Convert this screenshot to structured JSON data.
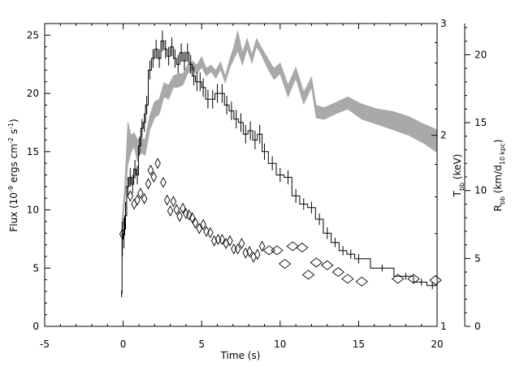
{
  "chart_data": {
    "type": "line",
    "xlabel": "Time (s)",
    "xlim": [
      -5,
      20
    ],
    "x_ticks": [
      "-5",
      "0",
      "5",
      "10",
      "15",
      "20"
    ],
    "left_axis": {
      "label_main": "Flux (10",
      "label_exp1": "-9",
      "label_mid": " ergs cm",
      "label_exp2": "-2",
      "label_s": " s",
      "label_exp3": "-1",
      "label_end": ")",
      "ylim": [
        0,
        26
      ],
      "ticks": [
        "0",
        "5",
        "10",
        "15",
        "20",
        "25"
      ]
    },
    "temp_axis": {
      "label_main": "T",
      "label_sub": "bb",
      "label_end": " (keV)",
      "scale": "log",
      "ylim": [
        1,
        3
      ],
      "ticks": [
        "1",
        "2",
        "3"
      ]
    },
    "radius_axis": {
      "label_main": "R",
      "label_sub1": "bb",
      "label_mid": " (km/d",
      "label_sub2": "10 kpc",
      "label_end": ")",
      "ylim": [
        0,
        22.3
      ],
      "ticks": [
        "0",
        "5",
        "10",
        "15",
        "20"
      ]
    },
    "series": [
      {
        "style": "histogram with error bars",
        "axis": "flux",
        "points": [
          [
            -0.1,
            2.8,
            0.3
          ],
          [
            -0.05,
            7.5,
            1.5
          ],
          [
            0.05,
            8.0,
            1.3
          ],
          [
            0.15,
            9.5,
            1.2
          ],
          [
            0.3,
            12.0,
            0.8
          ],
          [
            0.45,
            12.8,
            0.8
          ],
          [
            0.6,
            12.2,
            0.8
          ],
          [
            0.75,
            13.5,
            0.8
          ],
          [
            0.9,
            13.0,
            0.8
          ],
          [
            1.05,
            15.5,
            0.8
          ],
          [
            1.2,
            17.0,
            0.8
          ],
          [
            1.35,
            17.5,
            0.8
          ],
          [
            1.5,
            19.0,
            0.8
          ],
          [
            1.7,
            22.0,
            0.8
          ],
          [
            1.9,
            23.0,
            0.8
          ],
          [
            2.1,
            23.8,
            0.8
          ],
          [
            2.3,
            23.0,
            0.8
          ],
          [
            2.5,
            24.5,
            0.9
          ],
          [
            2.7,
            23.8,
            0.8
          ],
          [
            2.9,
            23.2,
            0.8
          ],
          [
            3.1,
            24.0,
            0.8
          ],
          [
            3.3,
            23.0,
            0.8
          ],
          [
            3.5,
            22.5,
            0.8
          ],
          [
            3.7,
            23.5,
            0.8
          ],
          [
            3.9,
            22.8,
            0.8
          ],
          [
            4.1,
            23.5,
            0.8
          ],
          [
            4.3,
            22.5,
            0.8
          ],
          [
            4.5,
            21.5,
            0.8
          ],
          [
            4.7,
            21.0,
            0.8
          ],
          [
            4.9,
            21.0,
            0.8
          ],
          [
            5.1,
            20.5,
            0.8
          ],
          [
            5.4,
            19.5,
            0.8
          ],
          [
            5.7,
            19.5,
            0.8
          ],
          [
            6.0,
            20.0,
            0.8
          ],
          [
            6.3,
            20.0,
            0.8
          ],
          [
            6.6,
            19.0,
            0.8
          ],
          [
            6.9,
            18.5,
            0.8
          ],
          [
            7.2,
            17.8,
            0.8
          ],
          [
            7.5,
            17.5,
            0.8
          ],
          [
            7.8,
            16.5,
            0.8
          ],
          [
            8.1,
            16.8,
            0.8
          ],
          [
            8.4,
            16.0,
            0.8
          ],
          [
            8.7,
            16.5,
            0.8
          ],
          [
            9.0,
            15.0,
            0.7
          ],
          [
            9.5,
            14.0,
            0.6
          ],
          [
            10.0,
            13.0,
            0.6
          ],
          [
            10.5,
            12.8,
            0.6
          ],
          [
            11.0,
            11.2,
            0.6
          ],
          [
            11.5,
            10.5,
            0.5
          ],
          [
            12.0,
            10.2,
            0.5
          ],
          [
            12.5,
            9.2,
            0.5
          ],
          [
            13.0,
            8.0,
            0.5
          ],
          [
            13.5,
            7.2,
            0.4
          ],
          [
            14.0,
            6.5,
            0.4
          ],
          [
            14.5,
            6.2,
            0.4
          ],
          [
            15.0,
            5.8,
            0.4
          ],
          [
            16.5,
            5.0,
            0.3
          ],
          [
            18.0,
            4.3,
            0.3
          ],
          [
            19.0,
            3.8,
            0.3
          ],
          [
            19.7,
            3.5,
            0.3
          ],
          [
            20.0,
            3.5,
            0.3
          ]
        ]
      },
      {
        "style": "shaded band",
        "axis": "temperature",
        "points": [
          [
            -0.1,
            1.38,
            1.45
          ],
          [
            0.1,
            1.57,
            1.66
          ],
          [
            0.3,
            1.8,
            2.1
          ],
          [
            0.5,
            1.88,
            2.0
          ],
          [
            0.7,
            1.92,
            2.02
          ],
          [
            0.9,
            1.82,
            1.97
          ],
          [
            1.1,
            1.88,
            1.98
          ],
          [
            1.4,
            1.86,
            1.97
          ],
          [
            1.7,
            2.04,
            2.15
          ],
          [
            2.0,
            2.13,
            2.26
          ],
          [
            2.3,
            2.16,
            2.28
          ],
          [
            2.6,
            2.3,
            2.42
          ],
          [
            2.9,
            2.28,
            2.4
          ],
          [
            3.2,
            2.38,
            2.48
          ],
          [
            3.5,
            2.38,
            2.5
          ],
          [
            3.8,
            2.4,
            2.5
          ],
          [
            4.1,
            2.5,
            2.58
          ],
          [
            4.4,
            2.54,
            2.62
          ],
          [
            4.7,
            2.5,
            2.58
          ],
          [
            5.0,
            2.56,
            2.66
          ],
          [
            5.3,
            2.48,
            2.55
          ],
          [
            5.6,
            2.52,
            2.58
          ],
          [
            5.9,
            2.46,
            2.53
          ],
          [
            6.2,
            2.54,
            2.61
          ],
          [
            6.5,
            2.42,
            2.48
          ],
          [
            6.8,
            2.56,
            2.64
          ],
          [
            7.0,
            2.62,
            2.73
          ],
          [
            7.3,
            2.72,
            2.92
          ],
          [
            7.6,
            2.58,
            2.7
          ],
          [
            7.9,
            2.74,
            2.84
          ],
          [
            8.2,
            2.6,
            2.68
          ],
          [
            8.5,
            2.76,
            2.84
          ],
          [
            8.8,
            2.68,
            2.75
          ],
          [
            9.2,
            2.55,
            2.65
          ],
          [
            9.6,
            2.45,
            2.55
          ],
          [
            10.0,
            2.5,
            2.6
          ],
          [
            10.5,
            2.3,
            2.4
          ],
          [
            11.0,
            2.46,
            2.56
          ],
          [
            11.5,
            2.24,
            2.34
          ],
          [
            12.0,
            2.38,
            2.47
          ],
          [
            12.3,
            2.13,
            2.23
          ],
          [
            12.8,
            2.12,
            2.21
          ],
          [
            13.5,
            2.16,
            2.25
          ],
          [
            14.3,
            2.2,
            2.3
          ],
          [
            15.2,
            2.12,
            2.24
          ],
          [
            16.2,
            2.08,
            2.2
          ],
          [
            17.2,
            2.04,
            2.18
          ],
          [
            18.2,
            2.0,
            2.14
          ],
          [
            19.2,
            1.94,
            2.08
          ],
          [
            20.0,
            1.88,
            2.04
          ]
        ]
      },
      {
        "style": "diamond markers",
        "axis": "radius",
        "points": [
          [
            -0.05,
            6.8
          ],
          [
            0.45,
            9.6
          ],
          [
            0.7,
            9.0
          ],
          [
            0.9,
            9.3
          ],
          [
            1.1,
            9.8
          ],
          [
            1.35,
            9.4
          ],
          [
            1.6,
            10.5
          ],
          [
            1.75,
            11.5
          ],
          [
            1.95,
            11.0
          ],
          [
            2.2,
            12.0
          ],
          [
            2.55,
            10.6
          ],
          [
            2.8,
            9.3
          ],
          [
            3.0,
            8.5
          ],
          [
            3.2,
            9.2
          ],
          [
            3.4,
            8.6
          ],
          [
            3.6,
            8.1
          ],
          [
            3.8,
            8.7
          ],
          [
            4.0,
            8.3
          ],
          [
            4.2,
            8.2
          ],
          [
            4.4,
            8.0
          ],
          [
            4.6,
            7.6
          ],
          [
            4.85,
            7.2
          ],
          [
            5.1,
            7.5
          ],
          [
            5.3,
            7.0
          ],
          [
            5.55,
            6.9
          ],
          [
            5.8,
            6.3
          ],
          [
            6.05,
            6.4
          ],
          [
            6.3,
            6.4
          ],
          [
            6.55,
            6.1
          ],
          [
            6.8,
            6.3
          ],
          [
            7.05,
            5.7
          ],
          [
            7.3,
            5.7
          ],
          [
            7.55,
            6.1
          ],
          [
            7.8,
            5.4
          ],
          [
            8.05,
            5.5
          ],
          [
            8.3,
            5.1
          ],
          [
            8.55,
            5.3
          ],
          [
            8.85,
            5.9
          ],
          [
            9.3,
            5.6
          ],
          [
            9.8,
            5.6
          ],
          [
            10.3,
            4.6
          ],
          [
            10.8,
            5.9
          ],
          [
            11.4,
            5.8
          ],
          [
            11.8,
            3.8
          ],
          [
            12.3,
            4.7
          ],
          [
            13.0,
            4.5
          ],
          [
            13.7,
            4.0
          ],
          [
            14.3,
            3.5
          ],
          [
            15.2,
            3.3
          ],
          [
            17.5,
            3.5
          ],
          [
            18.5,
            3.5
          ],
          [
            19.9,
            3.4
          ]
        ]
      }
    ]
  }
}
